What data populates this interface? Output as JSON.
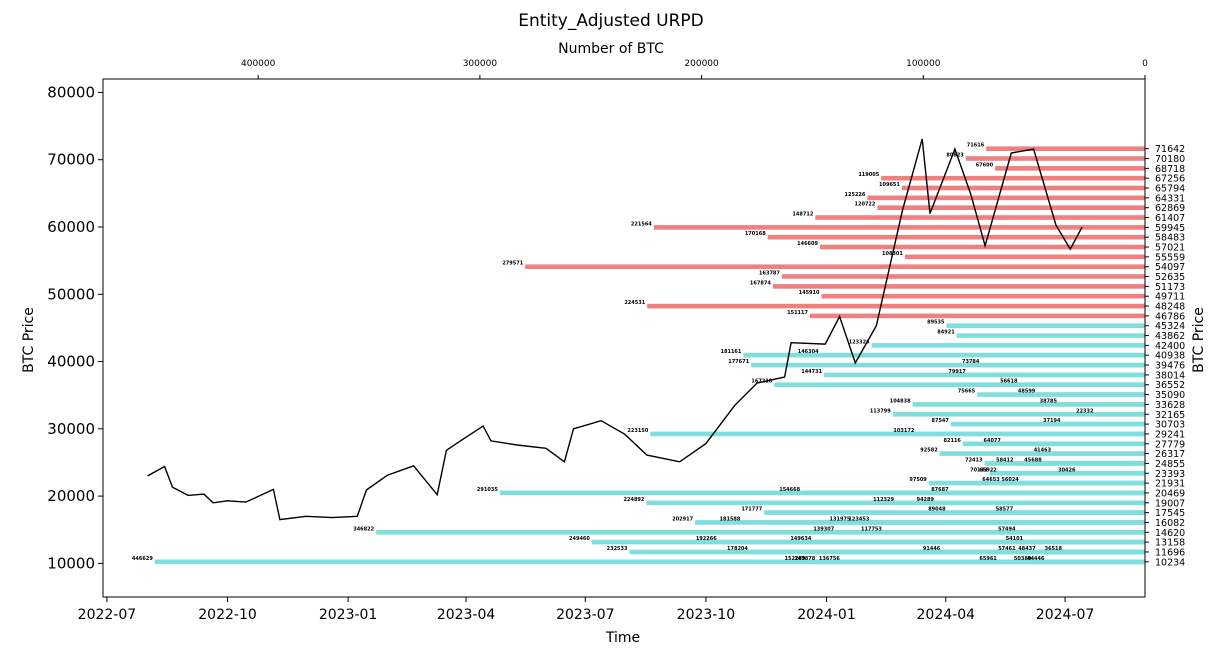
{
  "chart_data": {
    "type": "horizontal-bar + line",
    "title": "Entity_Adjusted URPD",
    "xlabel": "Time",
    "ylabel": "BTC Price",
    "ylabel_right": "BTC Price",
    "top_xlabel": "Number of BTC",
    "ylim": [
      5000,
      82000
    ],
    "xlim": [
      "2022-06-28",
      "2024-08-31"
    ],
    "top_xlim": [
      470000,
      0
    ],
    "grid": false,
    "colors": {
      "above": "#f08080",
      "below": "#7fdfdf",
      "line": "#000000"
    },
    "bottom_ticks": [
      "2022-07",
      "2022-10",
      "2023-01",
      "2023-04",
      "2023-07",
      "2023-10",
      "2024-01",
      "2024-04",
      "2024-07"
    ],
    "top_ticks": [
      400000,
      300000,
      200000,
      100000,
      0
    ],
    "y_ticks": [
      10000,
      20000,
      30000,
      40000,
      50000,
      60000,
      70000,
      80000
    ],
    "bars": [
      {
        "price": 71642,
        "btc": 71616,
        "label": "71616",
        "side": "above"
      },
      {
        "price": 70180,
        "btc": 80823,
        "label": "80823",
        "side": "above"
      },
      {
        "price": 68718,
        "btc": 67600,
        "label": "67600",
        "side": "above"
      },
      {
        "price": 67256,
        "btc": 119005,
        "label": "119005",
        "side": "above"
      },
      {
        "price": 65794,
        "btc": 109651,
        "label": "109651",
        "side": "above"
      },
      {
        "price": 64331,
        "btc": 125226,
        "label": "125226",
        "side": "above"
      },
      {
        "price": 62869,
        "btc": 120722,
        "label": "120722",
        "side": "above"
      },
      {
        "price": 61407,
        "btc": 148712,
        "label": "148712",
        "side": "above"
      },
      {
        "price": 59945,
        "btc": 221564,
        "label": "221564",
        "side": "above"
      },
      {
        "price": 58483,
        "btc": 170168,
        "label": "170168",
        "side": "above"
      },
      {
        "price": 57021,
        "btc": 146609,
        "label": "146609",
        "side": "above"
      },
      {
        "price": 55559,
        "btc": 108301,
        "label": "108301",
        "side": "above"
      },
      {
        "price": 54097,
        "btc": 279571,
        "label": "279571",
        "side": "above"
      },
      {
        "price": 52635,
        "btc": 163787,
        "label": "163787",
        "side": "above"
      },
      {
        "price": 51173,
        "btc": 167874,
        "label": "167874",
        "side": "above"
      },
      {
        "price": 49711,
        "btc": 145910,
        "label": "145910",
        "side": "above"
      },
      {
        "price": 48248,
        "btc": 224531,
        "label": "224531",
        "side": "above"
      },
      {
        "price": 46786,
        "btc": 151117,
        "label": "151117",
        "side": "above"
      },
      {
        "price": 45324,
        "btc": 89535,
        "label": "89535",
        "side": "below"
      },
      {
        "price": 43862,
        "btc": 84921,
        "label": "84921",
        "side": "below"
      },
      {
        "price": 42400,
        "btc": 123325,
        "label": "123325",
        "side": "below"
      },
      {
        "price": 40938,
        "btc": 181161,
        "label": "181161",
        "side": "below"
      },
      {
        "price": 39476,
        "btc": 177671,
        "label": "177671",
        "side": "below"
      },
      {
        "price": 38014,
        "btc": 79917,
        "label": "79917",
        "side": "below"
      },
      {
        "price": 36552,
        "btc": 56618,
        "label": "56618",
        "side": "below"
      },
      {
        "price": 35090,
        "btc": 48599,
        "label": "48599",
        "side": "below"
      },
      {
        "price": 33628,
        "btc": 38785,
        "label": "38785",
        "side": "below"
      },
      {
        "price": 32165,
        "btc": 22332,
        "label": "22332",
        "side": "below"
      },
      {
        "price": 30703,
        "btc": 37194,
        "label": "37194",
        "side": "below"
      },
      {
        "price": 29241,
        "btc": 103172,
        "label": "103172",
        "side": "below"
      },
      {
        "price": 27779,
        "btc": 64077,
        "label": "64077",
        "side": "below"
      },
      {
        "price": 26317,
        "btc": 41463,
        "label": "41463",
        "side": "below"
      },
      {
        "price": 24855,
        "btc": 72413,
        "label": "72413",
        "side": "below"
      },
      {
        "price": 23393,
        "btc": 65922,
        "label": "65922",
        "side": "below"
      },
      {
        "price": 21931,
        "btc": 64653,
        "label": "64653",
        "side": "below"
      },
      {
        "price": 20469,
        "btc": 87687,
        "label": "87687",
        "side": "below"
      },
      {
        "price": 19007,
        "btc": 94289,
        "label": "94289",
        "side": "below"
      },
      {
        "price": 17545,
        "btc": 58577,
        "label": "58577",
        "side": "below"
      },
      {
        "price": 16082,
        "btc": 202917,
        "label": "202917",
        "side": "below"
      },
      {
        "price": 14620,
        "btc": 57494,
        "label": "57494",
        "side": "below"
      },
      {
        "price": 13158,
        "btc": 192266,
        "label": "192266",
        "side": "below"
      },
      {
        "price": 11696,
        "btc": 178204,
        "label": "178204",
        "side": "below"
      },
      {
        "price": 10234,
        "btc": 152289,
        "label": "152289",
        "side": "below"
      },
      {
        "price": 40938,
        "btc": 146304,
        "label": "146304",
        "side": "below"
      },
      {
        "price": 39476,
        "btc": 73784,
        "label": "73784",
        "side": "below"
      },
      {
        "price": 38014,
        "btc": 144731,
        "label": "144731",
        "side": "below"
      },
      {
        "price": 36552,
        "btc": 167210,
        "label": "167210",
        "side": "below"
      },
      {
        "price": 35090,
        "btc": 75665,
        "label": "75665",
        "side": "below"
      },
      {
        "price": 33628,
        "btc": 104838,
        "label": "104838",
        "side": "below"
      },
      {
        "price": 32165,
        "btc": 113799,
        "label": "113799",
        "side": "below"
      },
      {
        "price": 30703,
        "btc": 87547,
        "label": "87547",
        "side": "below"
      },
      {
        "price": 29241,
        "btc": 223150,
        "label": "223150",
        "side": "below"
      },
      {
        "price": 27779,
        "btc": 82116,
        "label": "82116",
        "side": "below"
      },
      {
        "price": 26317,
        "btc": 92582,
        "label": "92582",
        "side": "below"
      },
      {
        "price": 24855,
        "btc": 58412,
        "label": "58412",
        "side": "below"
      },
      {
        "price": 23393,
        "btc": 30426,
        "label": "30426",
        "side": "below"
      },
      {
        "price": 21931,
        "btc": 56024,
        "label": "56024",
        "side": "below"
      },
      {
        "price": 20469,
        "btc": 291035,
        "label": "291035",
        "side": "below"
      },
      {
        "price": 19007,
        "btc": 224892,
        "label": "224892",
        "side": "below"
      },
      {
        "price": 17545,
        "btc": 171777,
        "label": "171777",
        "side": "below"
      },
      {
        "price": 16082,
        "btc": 181588,
        "label": "181588",
        "side": "below"
      },
      {
        "price": 14620,
        "btc": 139307,
        "label": "139307",
        "side": "below"
      },
      {
        "price": 13158,
        "btc": 149634,
        "label": "149634",
        "side": "below"
      },
      {
        "price": 11696,
        "btc": 232533,
        "label": "232533",
        "side": "below"
      },
      {
        "price": 10234,
        "btc": 446629,
        "label": "446629",
        "side": "below"
      },
      {
        "price": 24855,
        "btc": 45688,
        "label": "45688",
        "side": "below"
      },
      {
        "price": 23393,
        "btc": 70133,
        "label": "70133",
        "side": "below"
      },
      {
        "price": 21931,
        "btc": 97509,
        "label": "97509",
        "side": "below"
      },
      {
        "price": 20469,
        "btc": 154668,
        "label": "154668",
        "side": "below"
      },
      {
        "price": 19007,
        "btc": 112329,
        "label": "112329",
        "side": "below"
      },
      {
        "price": 17545,
        "btc": 89048,
        "label": "89048",
        "side": "below"
      },
      {
        "price": 16082,
        "btc": 123453,
        "label": "123453",
        "side": "below"
      },
      {
        "price": 14620,
        "btc": 117753,
        "label": "117753",
        "side": "below"
      },
      {
        "price": 13158,
        "btc": 249460,
        "label": "249460",
        "side": "below"
      },
      {
        "price": 11696,
        "btc": 91446,
        "label": "91446",
        "side": "below"
      },
      {
        "price": 10234,
        "btc": 65961,
        "label": "65961",
        "side": "below"
      },
      {
        "price": 16082,
        "btc": 131975,
        "label": "131975",
        "side": "below"
      },
      {
        "price": 14620,
        "btc": 346822,
        "label": "346822",
        "side": "below"
      },
      {
        "price": 13158,
        "btc": 54101,
        "label": "54101",
        "side": "below"
      },
      {
        "price": 11696,
        "btc": 36518,
        "label": "36518",
        "side": "below"
      },
      {
        "price": 10234,
        "btc": 44446,
        "label": "44446",
        "side": "below"
      },
      {
        "price": 11696,
        "btc": 48437,
        "label": "48437",
        "side": "below"
      },
      {
        "price": 10234,
        "btc": 50380,
        "label": "50380",
        "side": "below"
      },
      {
        "price": 11696,
        "btc": 57461,
        "label": "57461",
        "side": "below"
      },
      {
        "price": 10234,
        "btc": 136756,
        "label": "136756",
        "side": "below"
      },
      {
        "price": 10234,
        "btc": 147878,
        "label": "147878",
        "side": "below"
      }
    ],
    "right_ticks": [
      71642,
      70180,
      68718,
      67256,
      65794,
      64331,
      62869,
      61407,
      59945,
      58483,
      57021,
      55559,
      54097,
      52635,
      51173,
      49711,
      48248,
      46786,
      45324,
      43862,
      42400,
      40938,
      39476,
      38014,
      36552,
      35090,
      33628,
      32165,
      30703,
      29241,
      27779,
      26317,
      24855,
      23393,
      21931,
      20469,
      19007,
      17545,
      16082,
      14620,
      13158,
      11696,
      10234
    ],
    "price_series": [
      [
        "2022-08-01",
        23000
      ],
      [
        "2022-08-14",
        24400
      ],
      [
        "2022-08-20",
        21300
      ],
      [
        "2022-09-01",
        20100
      ],
      [
        "2022-09-13",
        20300
      ],
      [
        "2022-09-20",
        19000
      ],
      [
        "2022-10-01",
        19300
      ],
      [
        "2022-10-15",
        19100
      ],
      [
        "2022-11-05",
        21000
      ],
      [
        "2022-11-10",
        16500
      ],
      [
        "2022-11-30",
        17000
      ],
      [
        "2022-12-20",
        16800
      ],
      [
        "2023-01-08",
        17000
      ],
      [
        "2023-01-15",
        20900
      ],
      [
        "2023-01-31",
        23100
      ],
      [
        "2023-02-20",
        24500
      ],
      [
        "2023-03-10",
        20200
      ],
      [
        "2023-03-17",
        26800
      ],
      [
        "2023-03-30",
        28500
      ],
      [
        "2023-04-14",
        30400
      ],
      [
        "2023-04-20",
        28200
      ],
      [
        "2023-05-10",
        27600
      ],
      [
        "2023-06-01",
        27100
      ],
      [
        "2023-06-15",
        25100
      ],
      [
        "2023-06-22",
        30000
      ],
      [
        "2023-07-13",
        31200
      ],
      [
        "2023-07-31",
        29200
      ],
      [
        "2023-08-17",
        26100
      ],
      [
        "2023-09-11",
        25100
      ],
      [
        "2023-10-01",
        27800
      ],
      [
        "2023-10-23",
        33500
      ],
      [
        "2023-11-09",
        36800
      ],
      [
        "2023-11-30",
        37700
      ],
      [
        "2023-12-05",
        42800
      ],
      [
        "2023-12-31",
        42600
      ],
      [
        "2024-01-11",
        46700
      ],
      [
        "2024-01-23",
        39800
      ],
      [
        "2024-02-08",
        45300
      ],
      [
        "2024-02-28",
        62500
      ],
      [
        "2024-03-14",
        73100
      ],
      [
        "2024-03-20",
        62000
      ],
      [
        "2024-04-08",
        71600
      ],
      [
        "2024-04-20",
        64900
      ],
      [
        "2024-05-01",
        57200
      ],
      [
        "2024-05-21",
        71000
      ],
      [
        "2024-06-07",
        71600
      ],
      [
        "2024-06-24",
        60300
      ],
      [
        "2024-07-05",
        56700
      ],
      [
        "2024-07-14",
        60000
      ]
    ]
  }
}
